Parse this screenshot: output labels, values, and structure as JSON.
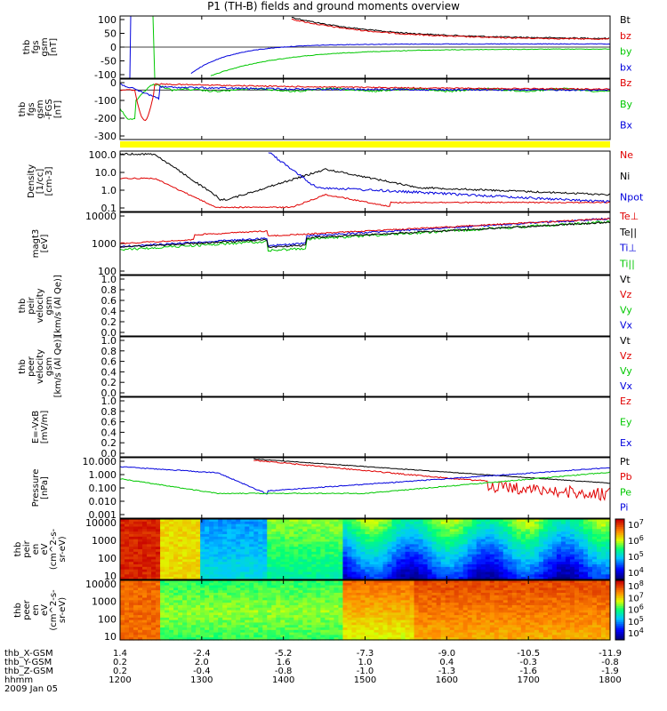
{
  "title": "P1 (TH-B) fields and ground moments overview",
  "colors": {
    "black": "#000000",
    "red": "#e00000",
    "green": "#00c800",
    "blue": "#0000dd",
    "yellow": "#ffff00"
  },
  "chart_data": [
    {
      "id": "p1",
      "type": "line",
      "ylabel": [
        "thb",
        "fgs",
        "gsm",
        "[nT]"
      ],
      "yticks": [
        "100",
        "50",
        "0",
        "-50",
        "-100"
      ],
      "ylim": [
        -100,
        100
      ],
      "legend": [
        {
          "text": "Bt",
          "color": "black"
        },
        {
          "text": "bz",
          "color": "red"
        },
        {
          "text": "by",
          "color": "green"
        },
        {
          "text": "bx",
          "color": "blue"
        }
      ]
    },
    {
      "id": "p2",
      "type": "line",
      "ylabel": [
        "thb",
        "fgs",
        "gsm",
        "-FGS",
        "[nT]"
      ],
      "yticks": [
        "0",
        "-100",
        "-200",
        "-300"
      ],
      "ylim": [
        -350,
        30
      ],
      "legend": [
        {
          "text": "Bz",
          "color": "red"
        },
        {
          "text": "By",
          "color": "green"
        },
        {
          "text": "Bx",
          "color": "blue"
        }
      ]
    },
    {
      "id": "p3",
      "type": "line",
      "ylabel": [
        "Density",
        "[1/cc]",
        "[cm-3]"
      ],
      "yticks": [
        "100.0",
        "10.0",
        "1.0",
        "0.1"
      ],
      "yscale": "log",
      "legend": [
        {
          "text": "Ne",
          "color": "red"
        },
        {
          "text": "Ni",
          "color": "black"
        },
        {
          "text": "Npot",
          "color": "blue"
        }
      ]
    },
    {
      "id": "p4",
      "type": "line",
      "ylabel": [
        "magt3",
        "[eV]"
      ],
      "yticks": [
        "10000",
        "1000",
        "100"
      ],
      "yscale": "log",
      "legend": [
        {
          "text": "Te⊥",
          "color": "red"
        },
        {
          "text": "Te||",
          "color": "black"
        },
        {
          "text": "Ti⊥",
          "color": "blue"
        },
        {
          "text": "Ti||",
          "color": "green"
        }
      ]
    },
    {
      "id": "p5",
      "type": "line",
      "ylabel": [
        "thb",
        "peir",
        "velocity",
        "gsm",
        "[km/s (Al Qe)]"
      ],
      "yticks": [
        "1.0",
        "0.8",
        "0.6",
        "0.4",
        "0.2",
        "0.0"
      ],
      "ylim": [
        0,
        1
      ],
      "legend": [
        {
          "text": "Vt",
          "color": "black"
        },
        {
          "text": "Vz",
          "color": "red"
        },
        {
          "text": "Vy",
          "color": "green"
        },
        {
          "text": "Vx",
          "color": "blue"
        }
      ]
    },
    {
      "id": "p6",
      "type": "line",
      "ylabel": [
        "thb",
        "peer",
        "velocity",
        "gsm",
        "[km/s (Al Qe)]"
      ],
      "yticks": [
        "1.0",
        "0.8",
        "0.6",
        "0.4",
        "0.2",
        "0.0"
      ],
      "ylim": [
        0,
        1
      ],
      "legend": [
        {
          "text": "Vt",
          "color": "black"
        },
        {
          "text": "Vz",
          "color": "red"
        },
        {
          "text": "Vy",
          "color": "green"
        },
        {
          "text": "Vx",
          "color": "blue"
        }
      ]
    },
    {
      "id": "p7",
      "type": "line",
      "ylabel": [
        "E=-VxB",
        "[mV/m]"
      ],
      "yticks": [
        "1.0",
        "0.8",
        "0.6",
        "0.4",
        "0.2",
        "0.0"
      ],
      "ylim": [
        0,
        1
      ],
      "legend": [
        {
          "text": "Ez",
          "color": "red"
        },
        {
          "text": "Ey",
          "color": "green"
        },
        {
          "text": "Ex",
          "color": "blue"
        }
      ]
    },
    {
      "id": "p8",
      "type": "line",
      "ylabel": [
        "Pressure",
        "[nPa]"
      ],
      "yticks": [
        "10.000",
        "1.000",
        "0.100",
        "0.010",
        "0.001"
      ],
      "yscale": "log",
      "legend": [
        {
          "text": "Pt",
          "color": "black"
        },
        {
          "text": "Pb",
          "color": "red"
        },
        {
          "text": "Pe",
          "color": "green"
        },
        {
          "text": "Pi",
          "color": "blue"
        }
      ]
    },
    {
      "id": "p9",
      "type": "heatmap",
      "ylabel": [
        "thb",
        "peir",
        "en",
        "eV",
        "(cm^2-s-",
        "sr-eV)"
      ],
      "yticks": [
        "10000",
        "1000",
        "100",
        "10"
      ],
      "yscale": "log",
      "colorbar": [
        "10^7",
        "10^6",
        "10^5",
        "10^4"
      ]
    },
    {
      "id": "p10",
      "type": "heatmap",
      "ylabel": [
        "thb",
        "peer",
        "en",
        "eV",
        "(cm^2-s-",
        "sr-eV)"
      ],
      "yticks": [
        "10000",
        "1000",
        "100",
        "10"
      ],
      "yscale": "log",
      "colorbar": [
        "10^8",
        "10^7",
        "10^6",
        "10^5",
        "10^4"
      ]
    }
  ],
  "xaxis": {
    "rows": [
      {
        "label": "thb_X-GSM",
        "values": [
          "1.4",
          "-2.4",
          "-5.2",
          "-7.3",
          "-9.0",
          "-10.5",
          "-11.9"
        ]
      },
      {
        "label": "thb_Y-GSM",
        "values": [
          "0.2",
          "2.0",
          "1.6",
          "1.0",
          "0.4",
          "-0.3",
          "-0.8"
        ]
      },
      {
        "label": "thb_Z-GSM",
        "values": [
          "0.2",
          "-0.4",
          "-0.8",
          "-1.0",
          "-1.3",
          "-1.6",
          "-1.9"
        ]
      },
      {
        "label": "hhmm",
        "values": [
          "1200",
          "1300",
          "1400",
          "1500",
          "1600",
          "1700",
          "1800"
        ]
      }
    ],
    "date": "2009 Jan 05"
  }
}
